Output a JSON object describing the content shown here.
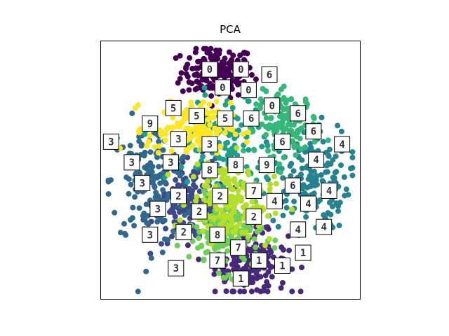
{
  "chart_data": {
    "type": "scatter",
    "title": "PCA",
    "xlabel": "",
    "ylabel": "",
    "ticks": "none",
    "grid": false,
    "legend": "none",
    "colormap": "viridis",
    "class_colors": {
      "0": "#440154",
      "1": "#482878",
      "2": "#3e4989",
      "3": "#31688e",
      "4": "#26828e",
      "5": "#1f9e89",
      "6": "#35b779",
      "7": "#6ece58",
      "8": "#b5de2b",
      "9": "#fde725"
    },
    "clusters": [
      {
        "label": "0",
        "center": [
          0.45,
          0.88
        ],
        "spread": [
          0.07,
          0.05
        ],
        "n": 170
      },
      {
        "label": "1",
        "center": [
          0.58,
          0.14
        ],
        "spread": [
          0.07,
          0.06
        ],
        "n": 170
      },
      {
        "label": "2",
        "center": [
          0.35,
          0.38
        ],
        "spread": [
          0.07,
          0.08
        ],
        "n": 170
      },
      {
        "label": "3",
        "center": [
          0.19,
          0.45
        ],
        "spread": [
          0.08,
          0.12
        ],
        "n": 170
      },
      {
        "label": "4",
        "center": [
          0.8,
          0.47
        ],
        "spread": [
          0.08,
          0.1
        ],
        "n": 170
      },
      {
        "label": "5",
        "center": [
          0.47,
          0.6
        ],
        "spread": [
          0.1,
          0.1
        ],
        "n": 150
      },
      {
        "label": "6",
        "center": [
          0.72,
          0.68
        ],
        "spread": [
          0.06,
          0.06
        ],
        "n": 150
      },
      {
        "label": "7",
        "center": [
          0.48,
          0.25
        ],
        "spread": [
          0.07,
          0.07
        ],
        "n": 170
      },
      {
        "label": "8",
        "center": [
          0.5,
          0.38
        ],
        "spread": [
          0.08,
          0.08
        ],
        "n": 170
      },
      {
        "label": "9",
        "center": [
          0.34,
          0.66
        ],
        "spread": [
          0.08,
          0.05
        ],
        "n": 150
      }
    ],
    "thumbnails": [
      {
        "digit": "0",
        "pos": [
          0.42,
          0.89
        ]
      },
      {
        "digit": "0",
        "pos": [
          0.54,
          0.89
        ]
      },
      {
        "digit": "6",
        "pos": [
          0.65,
          0.87
        ]
      },
      {
        "digit": "0",
        "pos": [
          0.47,
          0.82
        ]
      },
      {
        "digit": "0",
        "pos": [
          0.57,
          0.81
        ]
      },
      {
        "digit": "0",
        "pos": [
          0.66,
          0.75
        ]
      },
      {
        "digit": "5",
        "pos": [
          0.28,
          0.74
        ]
      },
      {
        "digit": "6",
        "pos": [
          0.76,
          0.72
        ]
      },
      {
        "digit": "5",
        "pos": [
          0.37,
          0.71
        ]
      },
      {
        "digit": "5",
        "pos": [
          0.48,
          0.7
        ]
      },
      {
        "digit": "6",
        "pos": [
          0.58,
          0.7
        ]
      },
      {
        "digit": "9",
        "pos": [
          0.19,
          0.68
        ]
      },
      {
        "digit": "6",
        "pos": [
          0.82,
          0.65
        ]
      },
      {
        "digit": "3",
        "pos": [
          0.04,
          0.61
        ]
      },
      {
        "digit": "3",
        "pos": [
          0.3,
          0.62
        ]
      },
      {
        "digit": "3",
        "pos": [
          0.42,
          0.6
        ]
      },
      {
        "digit": "6",
        "pos": [
          0.7,
          0.61
        ]
      },
      {
        "digit": "4",
        "pos": [
          0.93,
          0.6
        ]
      },
      {
        "digit": "4",
        "pos": [
          0.83,
          0.54
        ]
      },
      {
        "digit": "3",
        "pos": [
          0.12,
          0.53
        ]
      },
      {
        "digit": "3",
        "pos": [
          0.27,
          0.53
        ]
      },
      {
        "digit": "8",
        "pos": [
          0.42,
          0.5
        ]
      },
      {
        "digit": "8",
        "pos": [
          0.52,
          0.52
        ]
      },
      {
        "digit": "9",
        "pos": [
          0.64,
          0.52
        ]
      },
      {
        "digit": "3",
        "pos": [
          0.16,
          0.45
        ]
      },
      {
        "digit": "6",
        "pos": [
          0.74,
          0.44
        ]
      },
      {
        "digit": "2",
        "pos": [
          0.3,
          0.4
        ]
      },
      {
        "digit": "2",
        "pos": [
          0.46,
          0.4
        ]
      },
      {
        "digit": "7",
        "pos": [
          0.59,
          0.42
        ]
      },
      {
        "digit": "4",
        "pos": [
          0.88,
          0.42
        ]
      },
      {
        "digit": "4",
        "pos": [
          0.67,
          0.38
        ]
      },
      {
        "digit": "3",
        "pos": [
          0.22,
          0.35
        ]
      },
      {
        "digit": "4",
        "pos": [
          0.8,
          0.37
        ]
      },
      {
        "digit": "2",
        "pos": [
          0.38,
          0.34
        ]
      },
      {
        "digit": "2",
        "pos": [
          0.59,
          0.32
        ]
      },
      {
        "digit": "4",
        "pos": [
          0.86,
          0.28
        ]
      },
      {
        "digit": "4",
        "pos": [
          0.76,
          0.27
        ]
      },
      {
        "digit": "2",
        "pos": [
          0.32,
          0.26
        ]
      },
      {
        "digit": "8",
        "pos": [
          0.45,
          0.25
        ]
      },
      {
        "digit": "3",
        "pos": [
          0.19,
          0.25
        ]
      },
      {
        "digit": "7",
        "pos": [
          0.53,
          0.2
        ]
      },
      {
        "digit": "1",
        "pos": [
          0.78,
          0.18
        ]
      },
      {
        "digit": "1",
        "pos": [
          0.61,
          0.15
        ]
      },
      {
        "digit": "7",
        "pos": [
          0.45,
          0.15
        ]
      },
      {
        "digit": "1",
        "pos": [
          0.7,
          0.13
        ]
      },
      {
        "digit": "3",
        "pos": [
          0.29,
          0.12
        ]
      },
      {
        "digit": "1",
        "pos": [
          0.54,
          0.08
        ]
      }
    ]
  }
}
